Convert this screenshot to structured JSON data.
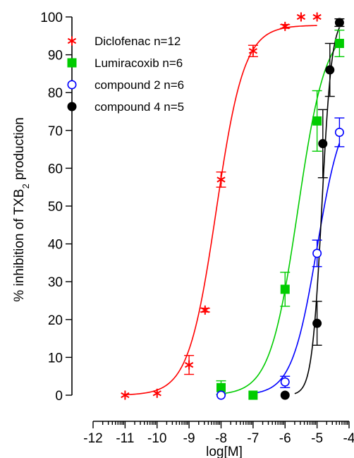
{
  "chart_data": {
    "type": "scatter",
    "title": "",
    "xlabel": "log[M]",
    "ylabel": {
      "prefix": "% inhibition of TXB",
      "subscript": "2",
      "suffix": " production"
    },
    "xlim": [
      -12,
      -4
    ],
    "ylim": [
      0,
      100
    ],
    "x_ticks": [
      -12,
      -11,
      -10,
      -9,
      -8,
      -7,
      -6,
      -5,
      -4
    ],
    "x_tick_labels": [
      "-12",
      "-11",
      "-10",
      "-9",
      "-8",
      "-7",
      "-6",
      "-5",
      "-4"
    ],
    "y_ticks": [
      0,
      10,
      20,
      30,
      40,
      50,
      60,
      70,
      80,
      90,
      100
    ],
    "y_tick_labels": [
      "0",
      "10",
      "20",
      "30",
      "40",
      "50",
      "60",
      "70",
      "80",
      "90",
      "100"
    ],
    "x_minor_ticks": "log-decade",
    "legend_position": "top-left",
    "grid": false,
    "series": [
      {
        "name": "Diclofenac n=12",
        "color": "#ff0000",
        "marker": "asterisk",
        "points": [
          {
            "x": -11,
            "y": 0,
            "err": 0
          },
          {
            "x": -10,
            "y": 0.5,
            "err": 0
          },
          {
            "x": -9,
            "y": 8,
            "err": 2.5
          },
          {
            "x": -8.5,
            "y": 22.5,
            "err": 0.5
          },
          {
            "x": -8,
            "y": 57,
            "err": 2
          },
          {
            "x": -7,
            "y": 91,
            "err": 1.5
          },
          {
            "x": -6,
            "y": 97.5,
            "err": 0.5
          },
          {
            "x": -5.5,
            "y": 100,
            "err": 0
          },
          {
            "x": -5,
            "y": 100,
            "err": 0
          }
        ],
        "fit": {
          "bottom": 0,
          "top": 97.8,
          "logEC50": -8.15,
          "hill": 1.0
        }
      },
      {
        "name": "Lumiracoxib n=6",
        "color": "#00cc00",
        "marker": "square",
        "points": [
          {
            "x": -8,
            "y": 2,
            "err": 1.8
          },
          {
            "x": -7,
            "y": 0,
            "err": 0
          },
          {
            "x": -6,
            "y": 28,
            "err": 4.5
          },
          {
            "x": -5,
            "y": 72.5,
            "err": 8
          },
          {
            "x": -4.3,
            "y": 93,
            "err": 3.5
          }
        ],
        "fit": {
          "bottom": 0,
          "top": 98,
          "logEC50": -5.6,
          "hill": 1.0,
          "x_from": -8
        }
      },
      {
        "name": "compound 2 n=6",
        "color": "#0000ff",
        "marker": "open-circle",
        "points": [
          {
            "x": -8,
            "y": 0,
            "err": 0
          },
          {
            "x": -6,
            "y": 3.5,
            "err": 1.5
          },
          {
            "x": -5,
            "y": 37.5,
            "err": 3.5
          },
          {
            "x": -4.3,
            "y": 69.5,
            "err": 3.8
          }
        ],
        "fit": {
          "bottom": 0,
          "top": 78,
          "logEC50": -5.0,
          "hill": 1.1,
          "x_from": -7
        }
      },
      {
        "name": "compound 4 n=5",
        "color": "#000000",
        "marker": "filled-circle",
        "points": [
          {
            "x": -6,
            "y": 0,
            "err": 0
          },
          {
            "x": -5,
            "y": 19,
            "err": 5.8
          },
          {
            "x": -4.82,
            "y": 66.5,
            "err": 9
          },
          {
            "x": -4.6,
            "y": 86,
            "err": 7
          },
          {
            "x": -4.3,
            "y": 98.5,
            "err": 1
          }
        ],
        "fit": {
          "bottom": 0,
          "top": 100,
          "logEC50": -4.85,
          "hill": 2.8,
          "x_from": -5.7
        }
      }
    ]
  }
}
